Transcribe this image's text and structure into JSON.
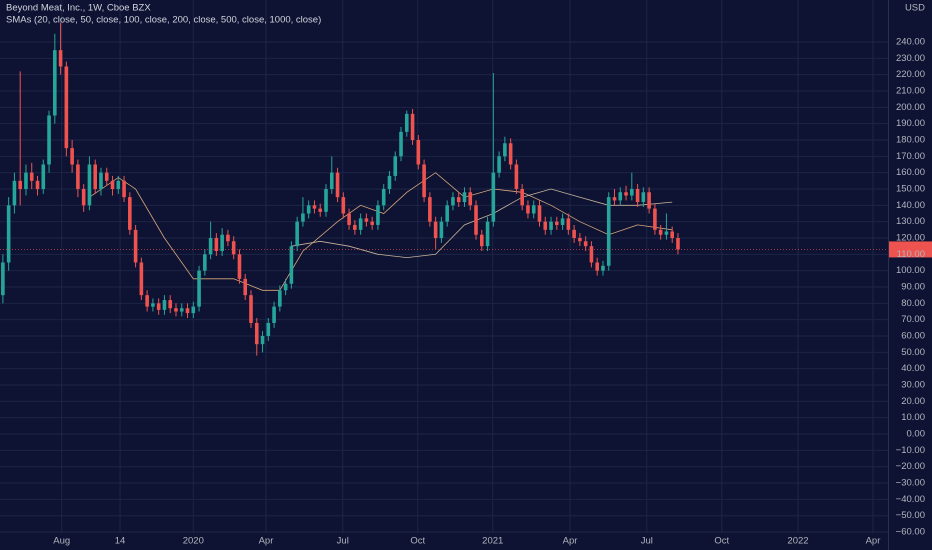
{
  "chart_data": {
    "type": "candlestick",
    "title": "Beyond Meat, Inc., 1W, Cboe BZX",
    "subtitle": "SMAs (20, close, 50, close, 100, close, 200, close, 500, close, 1000, close)",
    "currency": "USD",
    "up_color": "#26a69a",
    "down_color": "#ef5350",
    "grid": true,
    "xlim": [
      -0.5,
      153.4
    ],
    "xticks": [
      {
        "value": 10.2,
        "label": "Aug"
      },
      {
        "value": 20.3,
        "label": "14"
      },
      {
        "value": 33,
        "label": "2020"
      },
      {
        "value": 45.6,
        "label": "Apr"
      },
      {
        "value": 58.9,
        "label": "Jul"
      },
      {
        "value": 71.9,
        "label": "Oct"
      },
      {
        "value": 84.9,
        "label": "2021"
      },
      {
        "value": 98.3,
        "label": "Apr"
      },
      {
        "value": 111.6,
        "label": "Jul"
      },
      {
        "value": 124.6,
        "label": "Oct"
      },
      {
        "value": 137.8,
        "label": "2022"
      },
      {
        "value": 150.8,
        "label": "Apr"
      }
    ],
    "ylim": [
      -71,
      265.7
    ],
    "yticks": [
      {
        "value": 240,
        "label": "240.00"
      },
      {
        "value": 230,
        "label": "230.00"
      },
      {
        "value": 220,
        "label": "220.00"
      },
      {
        "value": 210,
        "label": "210.00"
      },
      {
        "value": 200,
        "label": "200.00"
      },
      {
        "value": 190,
        "label": "190.00"
      },
      {
        "value": 180,
        "label": "180.00"
      },
      {
        "value": 170,
        "label": "170.00"
      },
      {
        "value": 160,
        "label": "160.00"
      },
      {
        "value": 150,
        "label": "150.00"
      },
      {
        "value": 140,
        "label": "140.00"
      },
      {
        "value": 130,
        "label": "130.00"
      },
      {
        "value": 120,
        "label": "120.00"
      },
      {
        "value": 110,
        "label": "110.00"
      },
      {
        "value": 100,
        "label": "100.00"
      },
      {
        "value": 90,
        "label": "90.00"
      },
      {
        "value": 80,
        "label": "80.00"
      },
      {
        "value": 70,
        "label": "70.00"
      },
      {
        "value": 60,
        "label": "60.00"
      },
      {
        "value": 50,
        "label": "50.00"
      },
      {
        "value": 40,
        "label": "40.00"
      },
      {
        "value": 30,
        "label": "30.00"
      },
      {
        "value": 20,
        "label": "20.00"
      },
      {
        "value": 10,
        "label": "10.00"
      },
      {
        "value": 0,
        "label": "0.00"
      },
      {
        "value": -10,
        "label": "−10.00"
      },
      {
        "value": -20,
        "label": "−20.00"
      },
      {
        "value": -30,
        "label": "−30.00"
      },
      {
        "value": -40,
        "label": "−40.00"
      },
      {
        "value": -50,
        "label": "−50.00"
      },
      {
        "value": -60,
        "label": "−60.00"
      }
    ],
    "candles": [
      [
        85,
        110,
        80,
        105
      ],
      [
        105,
        145,
        100,
        140
      ],
      [
        140,
        160,
        135,
        155
      ],
      [
        155,
        222,
        140,
        150
      ],
      [
        150,
        165,
        146,
        160
      ],
      [
        160,
        166,
        150,
        155
      ],
      [
        155,
        158,
        146,
        150
      ],
      [
        150,
        168,
        147,
        165
      ],
      [
        165,
        198,
        160,
        195
      ],
      [
        195,
        245,
        190,
        235
      ],
      [
        235,
        252,
        220,
        225
      ],
      [
        225,
        228,
        170,
        175
      ],
      [
        175,
        180,
        160,
        165
      ],
      [
        165,
        168,
        145,
        150
      ],
      [
        150,
        153,
        136,
        140
      ],
      [
        140,
        170,
        137,
        165
      ],
      [
        165,
        168,
        147,
        150
      ],
      [
        150,
        163,
        146,
        160
      ],
      [
        160,
        163,
        152,
        155
      ],
      [
        155,
        158,
        146,
        150
      ],
      [
        150,
        158,
        147,
        155
      ],
      [
        155,
        158,
        142,
        145
      ],
      [
        145,
        148,
        122,
        125
      ],
      [
        125,
        128,
        102,
        105
      ],
      [
        105,
        108,
        82,
        85
      ],
      [
        85,
        88,
        75,
        78
      ],
      [
        78,
        83,
        75,
        80
      ],
      [
        80,
        83,
        73,
        76
      ],
      [
        76,
        85,
        73,
        82
      ],
      [
        82,
        85,
        74,
        77
      ],
      [
        77,
        80,
        72,
        75
      ],
      [
        75,
        80,
        72,
        77
      ],
      [
        77,
        80,
        71,
        74
      ],
      [
        74,
        81,
        71,
        78
      ],
      [
        78,
        103,
        75,
        100
      ],
      [
        100,
        113,
        97,
        110
      ],
      [
        110,
        130,
        107,
        120
      ],
      [
        120,
        123,
        109,
        112
      ],
      [
        112,
        126,
        109,
        122
      ],
      [
        122,
        125,
        115,
        118
      ],
      [
        118,
        121,
        107,
        110
      ],
      [
        110,
        113,
        92,
        95
      ],
      [
        95,
        98,
        82,
        85
      ],
      [
        85,
        88,
        65,
        68
      ],
      [
        68,
        71,
        48,
        55
      ],
      [
        55,
        63,
        50,
        60
      ],
      [
        60,
        71,
        57,
        68
      ],
      [
        68,
        81,
        65,
        78
      ],
      [
        78,
        91,
        75,
        88
      ],
      [
        88,
        95,
        85,
        92
      ],
      [
        92,
        118,
        89,
        115
      ],
      [
        115,
        133,
        112,
        130
      ],
      [
        130,
        145,
        127,
        135
      ],
      [
        135,
        143,
        132,
        140
      ],
      [
        140,
        143,
        135,
        138
      ],
      [
        138,
        141,
        133,
        136
      ],
      [
        136,
        153,
        133,
        150
      ],
      [
        150,
        170,
        147,
        160
      ],
      [
        160,
        163,
        142,
        145
      ],
      [
        145,
        148,
        132,
        135
      ],
      [
        135,
        138,
        125,
        128
      ],
      [
        128,
        131,
        122,
        125
      ],
      [
        125,
        135,
        122,
        132
      ],
      [
        132,
        135,
        127,
        130
      ],
      [
        130,
        133,
        125,
        128
      ],
      [
        128,
        143,
        125,
        140
      ],
      [
        140,
        153,
        137,
        150
      ],
      [
        150,
        161,
        147,
        158
      ],
      [
        158,
        173,
        155,
        170
      ],
      [
        170,
        188,
        167,
        185
      ],
      [
        185,
        198,
        182,
        196
      ],
      [
        196,
        199,
        177,
        180
      ],
      [
        180,
        183,
        162,
        165
      ],
      [
        165,
        168,
        142,
        145
      ],
      [
        145,
        148,
        127,
        130
      ],
      [
        130,
        133,
        113,
        120
      ],
      [
        120,
        133,
        117,
        130
      ],
      [
        130,
        143,
        127,
        140
      ],
      [
        140,
        148,
        137,
        145
      ],
      [
        145,
        148,
        139,
        142
      ],
      [
        142,
        151,
        139,
        148
      ],
      [
        148,
        151,
        137,
        140
      ],
      [
        140,
        143,
        119,
        122
      ],
      [
        122,
        125,
        112,
        115
      ],
      [
        115,
        133,
        112,
        130
      ],
      [
        130,
        221,
        127,
        160
      ],
      [
        160,
        173,
        157,
        170
      ],
      [
        170,
        182,
        167,
        178
      ],
      [
        178,
        181,
        162,
        165
      ],
      [
        165,
        168,
        147,
        150
      ],
      [
        150,
        153,
        137,
        140
      ],
      [
        140,
        143,
        132,
        135
      ],
      [
        135,
        143,
        132,
        140
      ],
      [
        140,
        143,
        127,
        130
      ],
      [
        130,
        133,
        122,
        125
      ],
      [
        125,
        133,
        122,
        130
      ],
      [
        130,
        133,
        125,
        128
      ],
      [
        128,
        135,
        125,
        132
      ],
      [
        132,
        135,
        122,
        125
      ],
      [
        125,
        128,
        117,
        120
      ],
      [
        120,
        123,
        115,
        118
      ],
      [
        118,
        121,
        112,
        115
      ],
      [
        115,
        118,
        102,
        105
      ],
      [
        105,
        108,
        97,
        100
      ],
      [
        100,
        106,
        97,
        103
      ],
      [
        103,
        148,
        100,
        145
      ],
      [
        145,
        150,
        140,
        143
      ],
      [
        143,
        151,
        140,
        148
      ],
      [
        148,
        152,
        143,
        146
      ],
      [
        146,
        160,
        143,
        150
      ],
      [
        150,
        153,
        139,
        142
      ],
      [
        142,
        151,
        139,
        148
      ],
      [
        148,
        151,
        135,
        138
      ],
      [
        138,
        141,
        122,
        125
      ],
      [
        125,
        128,
        119,
        122
      ],
      [
        122,
        135,
        119,
        124
      ],
      [
        124,
        127,
        117,
        120
      ],
      [
        120,
        123,
        110,
        113
      ]
    ],
    "lines": [
      {
        "color": "#d9a77a",
        "points": [
          [
            15,
            145
          ],
          [
            20,
            157
          ],
          [
            23,
            150
          ],
          [
            28,
            120
          ],
          [
            33,
            95
          ],
          [
            40,
            95
          ],
          [
            45,
            88
          ],
          [
            48,
            88
          ],
          [
            52,
            112
          ],
          [
            58,
            130
          ],
          [
            62,
            140
          ],
          [
            66,
            135
          ],
          [
            70,
            148
          ],
          [
            75,
            160
          ],
          [
            80,
            145
          ],
          [
            85,
            150
          ],
          [
            90,
            148
          ],
          [
            95,
            140
          ],
          [
            100,
            130
          ],
          [
            105,
            122
          ],
          [
            110,
            128
          ],
          [
            116,
            125
          ]
        ]
      },
      {
        "color": "#c8b49a",
        "points": [
          [
            50,
            115
          ],
          [
            55,
            118
          ],
          [
            60,
            115
          ],
          [
            65,
            110
          ],
          [
            70,
            108
          ],
          [
            75,
            110
          ],
          [
            80,
            128
          ],
          [
            85,
            135
          ],
          [
            90,
            145
          ],
          [
            95,
            150
          ],
          [
            100,
            145
          ],
          [
            105,
            140
          ],
          [
            110,
            140
          ],
          [
            116,
            142
          ]
        ]
      }
    ]
  }
}
